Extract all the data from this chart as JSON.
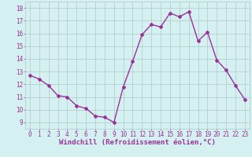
{
  "x": [
    0,
    1,
    2,
    3,
    4,
    5,
    6,
    7,
    8,
    9,
    10,
    11,
    12,
    13,
    14,
    15,
    16,
    17,
    18,
    19,
    20,
    21,
    22,
    23
  ],
  "y": [
    12.7,
    12.4,
    11.9,
    11.1,
    11.0,
    10.3,
    10.1,
    9.5,
    9.4,
    9.0,
    11.8,
    13.8,
    15.9,
    16.7,
    16.5,
    17.6,
    17.3,
    17.7,
    15.4,
    16.1,
    13.9,
    13.1,
    11.9,
    10.8
  ],
  "line_color": "#993399",
  "marker": "D",
  "marker_size": 2,
  "linewidth": 1.0,
  "bg_color": "#d4f0f0",
  "grid_color": "#b0c8c8",
  "xlabel": "Windchill (Refroidissement éolien,°C)",
  "xlabel_fontsize": 6.5,
  "xlabel_color": "#993399",
  "yticks": [
    9,
    10,
    11,
    12,
    13,
    14,
    15,
    16,
    17,
    18
  ],
  "xticks": [
    0,
    1,
    2,
    3,
    4,
    5,
    6,
    7,
    8,
    9,
    10,
    11,
    12,
    13,
    14,
    15,
    16,
    17,
    18,
    19,
    20,
    21,
    22,
    23
  ],
  "ylim": [
    8.5,
    18.5
  ],
  "xlim": [
    -0.5,
    23.5
  ],
  "tick_fontsize": 5.5,
  "tick_color": "#993399"
}
